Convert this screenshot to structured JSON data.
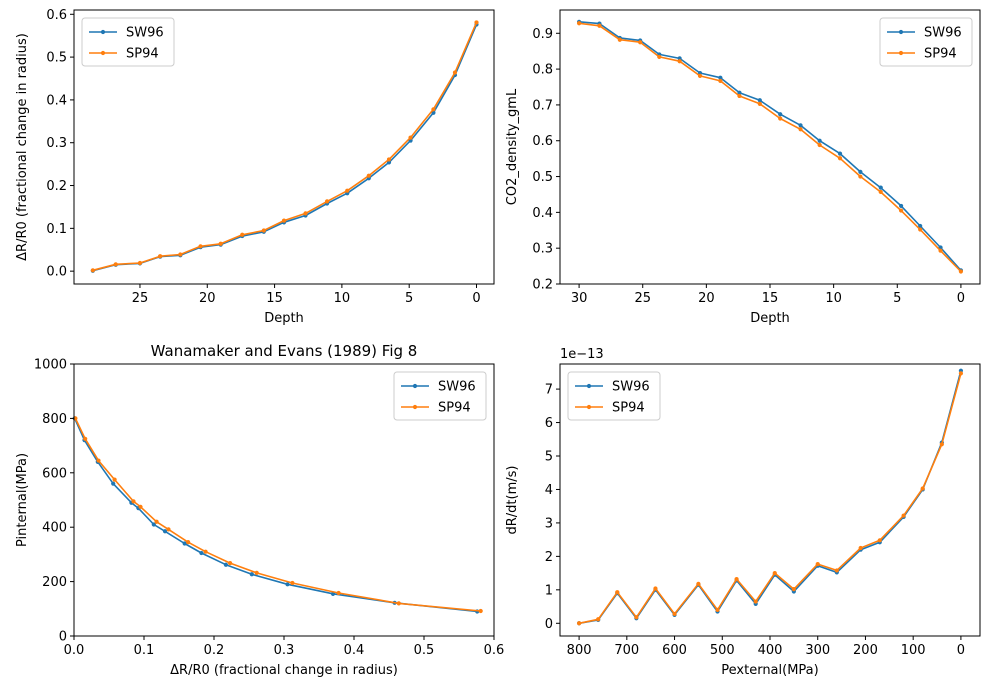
{
  "colors": {
    "sw96": "#1f77b4",
    "sp94": "#ff7f0e"
  },
  "chart_data": [
    {
      "type": "line",
      "title": "",
      "xlabel": "Depth",
      "ylabel": "ΔR/R0 (fractional change in radius)",
      "xlim": [
        29.9,
        -1.3
      ],
      "ylim": [
        -0.03,
        0.61
      ],
      "xticks": [
        25,
        20,
        15,
        10,
        5,
        0
      ],
      "yticks": [
        0.0,
        0.1,
        0.2,
        0.3,
        0.4,
        0.5,
        0.6
      ],
      "ytick_labels": [
        "0.0",
        "0.1",
        "0.2",
        "0.3",
        "0.4",
        "0.5",
        "0.6"
      ],
      "legend_position": "upper left",
      "series": [
        {
          "name": "SW96",
          "x": [
            28.5,
            26.8,
            25.0,
            23.5,
            22.0,
            20.5,
            19.0,
            17.4,
            15.8,
            14.3,
            12.7,
            11.1,
            9.6,
            8.0,
            6.5,
            4.9,
            3.2,
            1.6,
            0.0
          ],
          "y": [
            0.001,
            0.015,
            0.018,
            0.034,
            0.037,
            0.056,
            0.062,
            0.082,
            0.092,
            0.114,
            0.13,
            0.158,
            0.182,
            0.217,
            0.254,
            0.305,
            0.37,
            0.458,
            0.576
          ]
        },
        {
          "name": "SP94",
          "x": [
            28.5,
            26.8,
            25.0,
            23.5,
            22.0,
            20.5,
            19.0,
            17.4,
            15.8,
            14.3,
            12.7,
            11.1,
            9.6,
            8.0,
            6.5,
            4.9,
            3.2,
            1.6,
            0.0
          ],
          "y": [
            0.002,
            0.016,
            0.019,
            0.035,
            0.039,
            0.058,
            0.064,
            0.085,
            0.095,
            0.118,
            0.135,
            0.163,
            0.188,
            0.223,
            0.261,
            0.312,
            0.378,
            0.464,
            0.581
          ]
        }
      ]
    },
    {
      "type": "line",
      "title": "",
      "xlabel": "Depth",
      "ylabel": "CO2_density_gmL",
      "xlim": [
        31.5,
        -1.5
      ],
      "ylim": [
        0.2,
        0.965
      ],
      "xticks": [
        30,
        25,
        20,
        15,
        10,
        5,
        0
      ],
      "yticks": [
        0.2,
        0.3,
        0.4,
        0.5,
        0.6,
        0.7,
        0.8,
        0.9
      ],
      "ytick_labels": [
        "0.2",
        "0.3",
        "0.4",
        "0.5",
        "0.6",
        "0.7",
        "0.8",
        "0.9"
      ],
      "legend_position": "upper right",
      "series": [
        {
          "name": "SW96",
          "x": [
            30.0,
            28.4,
            26.8,
            25.2,
            23.7,
            22.1,
            20.5,
            18.9,
            17.4,
            15.8,
            14.2,
            12.6,
            11.1,
            9.5,
            7.9,
            6.3,
            4.7,
            3.2,
            1.6,
            0.0
          ],
          "y": [
            0.932,
            0.927,
            0.887,
            0.88,
            0.841,
            0.83,
            0.789,
            0.776,
            0.734,
            0.713,
            0.674,
            0.643,
            0.6,
            0.564,
            0.513,
            0.469,
            0.418,
            0.362,
            0.302,
            0.238
          ]
        },
        {
          "name": "SP94",
          "x": [
            30.0,
            28.4,
            26.8,
            25.2,
            23.7,
            22.1,
            20.5,
            18.9,
            17.4,
            15.8,
            14.2,
            12.6,
            11.1,
            9.5,
            7.9,
            6.3,
            4.7,
            3.2,
            1.6,
            0.0
          ],
          "y": [
            0.928,
            0.921,
            0.882,
            0.875,
            0.834,
            0.822,
            0.781,
            0.767,
            0.725,
            0.703,
            0.662,
            0.632,
            0.588,
            0.551,
            0.5,
            0.457,
            0.405,
            0.352,
            0.293,
            0.235
          ]
        }
      ]
    },
    {
      "type": "line",
      "title": "Wanamaker and Evans (1989) Fig 8",
      "xlabel": "ΔR/R0 (fractional change in radius)",
      "ylabel": "Pinternal(MPa)",
      "xlim": [
        0.0,
        0.6
      ],
      "ylim": [
        0,
        1000
      ],
      "xticks": [
        0.0,
        0.1,
        0.2,
        0.3,
        0.4,
        0.5,
        0.6
      ],
      "xtick_labels": [
        "0.0",
        "0.1",
        "0.2",
        "0.3",
        "0.4",
        "0.5",
        "0.6"
      ],
      "yticks": [
        0,
        200,
        400,
        600,
        800,
        1000
      ],
      "legend_position": "upper right",
      "series": [
        {
          "name": "SW96",
          "x": [
            0.001,
            0.015,
            0.034,
            0.056,
            0.082,
            0.092,
            0.114,
            0.13,
            0.158,
            0.182,
            0.217,
            0.254,
            0.305,
            0.37,
            0.458,
            0.576
          ],
          "y": [
            800,
            720,
            640,
            560,
            490,
            470,
            410,
            385,
            340,
            305,
            262,
            227,
            190,
            155,
            122,
            90
          ]
        },
        {
          "name": "SP94",
          "x": [
            0.002,
            0.016,
            0.035,
            0.058,
            0.085,
            0.095,
            0.118,
            0.135,
            0.163,
            0.188,
            0.223,
            0.261,
            0.312,
            0.378,
            0.464,
            0.581
          ],
          "y": [
            800,
            725,
            645,
            575,
            495,
            475,
            420,
            392,
            345,
            310,
            268,
            232,
            195,
            158,
            120,
            92
          ]
        }
      ]
    },
    {
      "type": "line",
      "title": "",
      "xlabel": "Pexternal(MPa)",
      "ylabel": "dR/dt(m/s)",
      "y_offset_label": "1e−13",
      "xlim": [
        840,
        -40
      ],
      "ylim": [
        -0.38,
        7.75
      ],
      "xticks": [
        800,
        700,
        600,
        500,
        400,
        300,
        200,
        100,
        0
      ],
      "yticks": [
        0,
        1,
        2,
        3,
        4,
        5,
        6,
        7
      ],
      "legend_position": "upper left",
      "series": [
        {
          "name": "SW96",
          "x": [
            800,
            760,
            720,
            680,
            640,
            600,
            550,
            510,
            470,
            430,
            390,
            350,
            300,
            260,
            210,
            170,
            120,
            80,
            40,
            0
          ],
          "y": [
            0.0,
            0.1,
            0.9,
            0.15,
            1.0,
            0.25,
            1.15,
            0.35,
            1.28,
            0.58,
            1.45,
            0.95,
            1.72,
            1.52,
            2.2,
            2.42,
            3.18,
            4.0,
            5.4,
            7.55
          ]
        },
        {
          "name": "SP94",
          "x": [
            800,
            760,
            720,
            680,
            640,
            600,
            550,
            510,
            470,
            430,
            390,
            350,
            300,
            260,
            210,
            170,
            120,
            80,
            40,
            0
          ],
          "y": [
            0.0,
            0.12,
            0.93,
            0.18,
            1.04,
            0.28,
            1.18,
            0.4,
            1.32,
            0.65,
            1.5,
            1.02,
            1.77,
            1.58,
            2.25,
            2.48,
            3.22,
            4.03,
            5.35,
            7.47
          ]
        }
      ]
    }
  ]
}
